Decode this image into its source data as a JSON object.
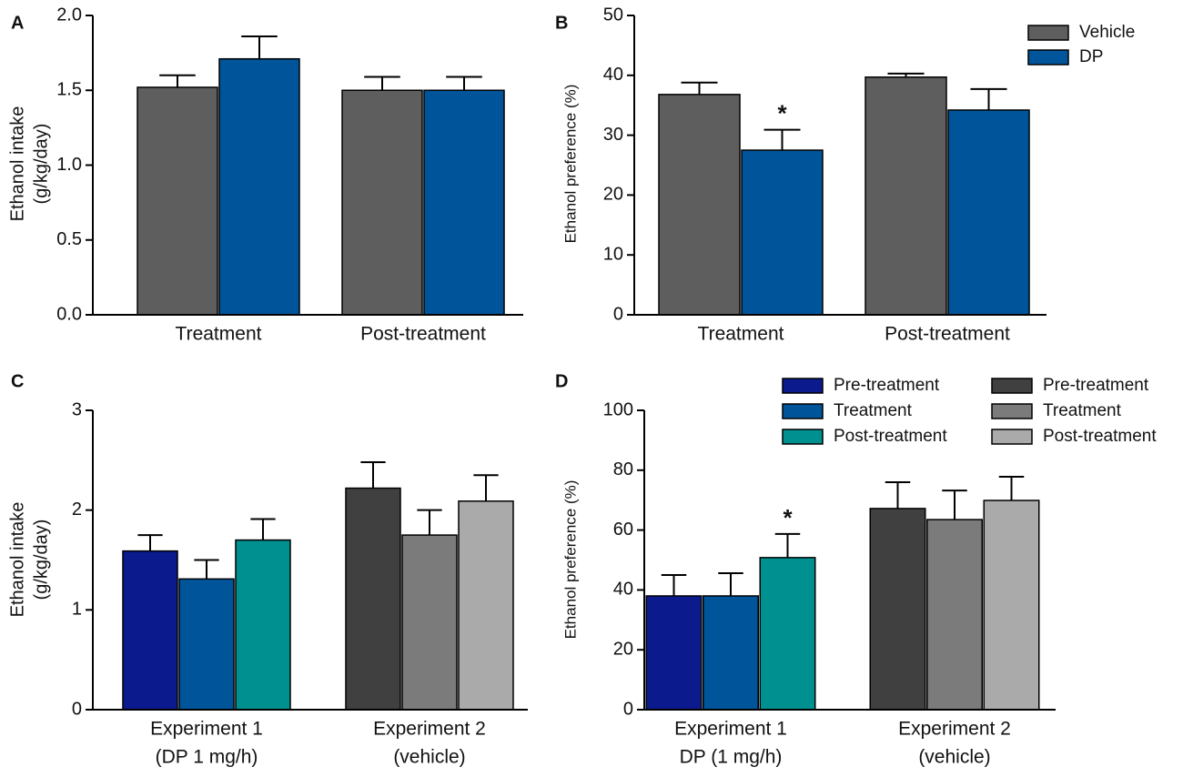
{
  "chart_data": [
    {
      "type": "bar",
      "label": "A",
      "ylabel": [
        "Ethanol intake",
        "(g/kg/day)"
      ],
      "categories": [
        "Treatment",
        "Post-treatment"
      ],
      "ylim": [
        0,
        2
      ],
      "yticks": [
        {
          "value": 0,
          "label": "0.0"
        },
        0.5,
        {
          "value": 1,
          "label": "1.0"
        },
        1.5,
        {
          "value": 2,
          "label": "2.0"
        }
      ],
      "series": [
        {
          "color": "#5e5e5e",
          "values": [
            1.52,
            1.5
          ],
          "errors": [
            0.08,
            0.09
          ]
        },
        {
          "color": "#00559a",
          "values": [
            1.71,
            1.5
          ],
          "errors": [
            0.15,
            0.09
          ]
        }
      ]
    },
    {
      "type": "bar",
      "label": "B",
      "ylabel": [
        "Ethanol preference (%)"
      ],
      "categories": [
        "Treatment",
        "Post-treatment"
      ],
      "ylim": [
        0,
        50
      ],
      "yticks": [
        0,
        10,
        20,
        30,
        40,
        50
      ],
      "legend": "upper right",
      "annotations": [
        "*"
      ],
      "series": [
        {
          "name": "Vehicle",
          "color": "#5e5e5e",
          "values": [
            36.8,
            39.7
          ],
          "errors": [
            2.0,
            0.6
          ]
        },
        {
          "name": "DP",
          "color": "#00559a",
          "values": [
            27.5,
            34.2
          ],
          "errors": [
            3.4,
            3.5
          ]
        }
      ]
    },
    {
      "type": "bar",
      "label": "C",
      "ylabel": [
        "Ethanol intake",
        "(g/kg/day)"
      ],
      "categories": [
        [
          "Experiment 1",
          "(DP 1 mg/h)"
        ],
        [
          "Experiment 2",
          "(vehicle)"
        ]
      ],
      "ylim": [
        0,
        3
      ],
      "yticks": [
        0,
        1,
        2,
        3
      ],
      "series": [
        {
          "color": "#0b1a8c",
          "values": [
            1.59,
            null
          ],
          "errors": [
            0.16,
            null
          ]
        },
        {
          "color": "#00559a",
          "values": [
            1.31,
            null
          ],
          "errors": [
            0.19,
            null
          ]
        },
        {
          "color": "#009090",
          "values": [
            1.7,
            null
          ],
          "errors": [
            0.21,
            null
          ]
        },
        {
          "color": "#404040",
          "values": [
            null,
            2.22
          ],
          "errors": [
            null,
            0.26
          ]
        },
        {
          "color": "#7b7b7b",
          "values": [
            null,
            1.75
          ],
          "errors": [
            null,
            0.25
          ]
        },
        {
          "color": "#aaaaaa",
          "values": [
            null,
            2.09
          ],
          "errors": [
            null,
            0.26
          ]
        }
      ]
    },
    {
      "type": "bar",
      "label": "D",
      "ylabel": [
        "Ethanol preference (%)"
      ],
      "categories": [
        [
          "Experiment 1",
          "DP (1 mg/h)"
        ],
        [
          "Experiment 2",
          "(vehicle)"
        ]
      ],
      "ylim": [
        0,
        100
      ],
      "yticks": [
        0,
        20,
        40,
        60,
        80,
        100
      ],
      "legend": "upper right",
      "annotations": [
        "*"
      ],
      "series": [
        {
          "name": "Pre-treatment",
          "color": "#0b1a8c",
          "values": [
            38.0,
            null
          ],
          "errors": [
            7.0,
            null
          ]
        },
        {
          "name": "Treatment",
          "color": "#00559a",
          "values": [
            38.0,
            null
          ],
          "errors": [
            7.6,
            null
          ]
        },
        {
          "name": "Post-treatment",
          "color": "#009090",
          "values": [
            50.8,
            null
          ],
          "errors": [
            7.9,
            null
          ]
        },
        {
          "name": "Pre-treatment",
          "color": "#404040",
          "values": [
            null,
            67.2
          ],
          "errors": [
            null,
            8.8
          ]
        },
        {
          "name": "Treatment",
          "color": "#7b7b7b",
          "values": [
            null,
            63.5
          ],
          "errors": [
            null,
            9.7
          ]
        },
        {
          "name": "Post-treatment",
          "color": "#aaaaaa",
          "values": [
            null,
            69.9
          ],
          "errors": [
            null,
            7.9
          ]
        }
      ]
    }
  ]
}
